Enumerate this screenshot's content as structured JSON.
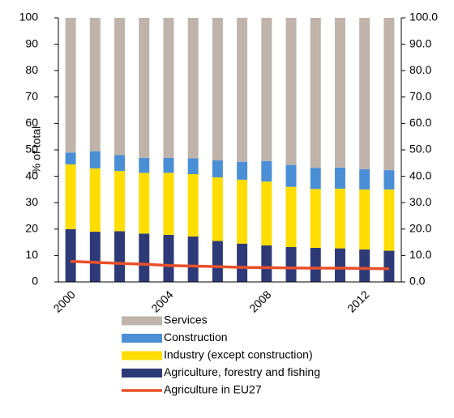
{
  "chart_data": {
    "type": "bar",
    "stacked": true,
    "ylabel": "% of total",
    "categories": [
      "2000",
      null,
      null,
      null,
      "2004",
      null,
      null,
      null,
      "2008",
      null,
      null,
      null,
      "2012",
      null
    ],
    "series": [
      {
        "name": "Agriculture, forestry and fishing",
        "color": "#2e3a78",
        "values": [
          20,
          19,
          19.2,
          18.3,
          17.8,
          17.2,
          15.5,
          14.5,
          13.8,
          13.2,
          12.9,
          12.7,
          12.3,
          11.8
        ]
      },
      {
        "name": "Industry (except construction)",
        "color": "#ffdd00",
        "values": [
          24.5,
          24,
          22.8,
          23,
          23.5,
          23.6,
          24.1,
          24.2,
          24.2,
          22.8,
          22.3,
          22.6,
          22.7,
          23.2
        ]
      },
      {
        "name": "Construction",
        "color": "#4a8fd6",
        "values": [
          4.5,
          6.5,
          6,
          5.7,
          5.7,
          6,
          6.4,
          6.8,
          7.8,
          8.3,
          8,
          8,
          7.7,
          7.3
        ]
      },
      {
        "name": "Services",
        "color": "#bfb3aa",
        "values": [
          51,
          50.5,
          52,
          53,
          53,
          53.2,
          54,
          54.5,
          54.2,
          55.7,
          56.8,
          56.7,
          57.3,
          57.7
        ]
      },
      {
        "name": "Agriculture in EU27",
        "color": "#e8502a",
        "type": "line",
        "axis": "y2",
        "values": [
          7.8,
          7.4,
          7.0,
          6.7,
          6.2,
          6.0,
          5.8,
          5.5,
          5.4,
          5.3,
          5.2,
          5.2,
          5.1,
          5.0
        ]
      }
    ],
    "ylim": [
      0,
      100
    ],
    "yticks": [
      0,
      10,
      20,
      30,
      40,
      50,
      60,
      70,
      80,
      90,
      100
    ],
    "y2lim": [
      0,
      100
    ],
    "y2ticks": [
      {
        "value": 0,
        "label": "0.0"
      },
      {
        "value": 10,
        "label": "10.0"
      },
      {
        "value": 20,
        "label": "20.0"
      },
      {
        "value": 30,
        "label": "30.0"
      },
      {
        "value": 40,
        "label": "40.0"
      },
      {
        "value": 50,
        "label": "50.0"
      },
      {
        "value": 60,
        "label": "60.0"
      },
      {
        "value": 70,
        "label": "70.0"
      },
      {
        "value": 80,
        "label": "80.0"
      },
      {
        "value": 90,
        "label": "90.0"
      },
      {
        "value": 100,
        "label": "100.0"
      }
    ],
    "grid": false
  }
}
